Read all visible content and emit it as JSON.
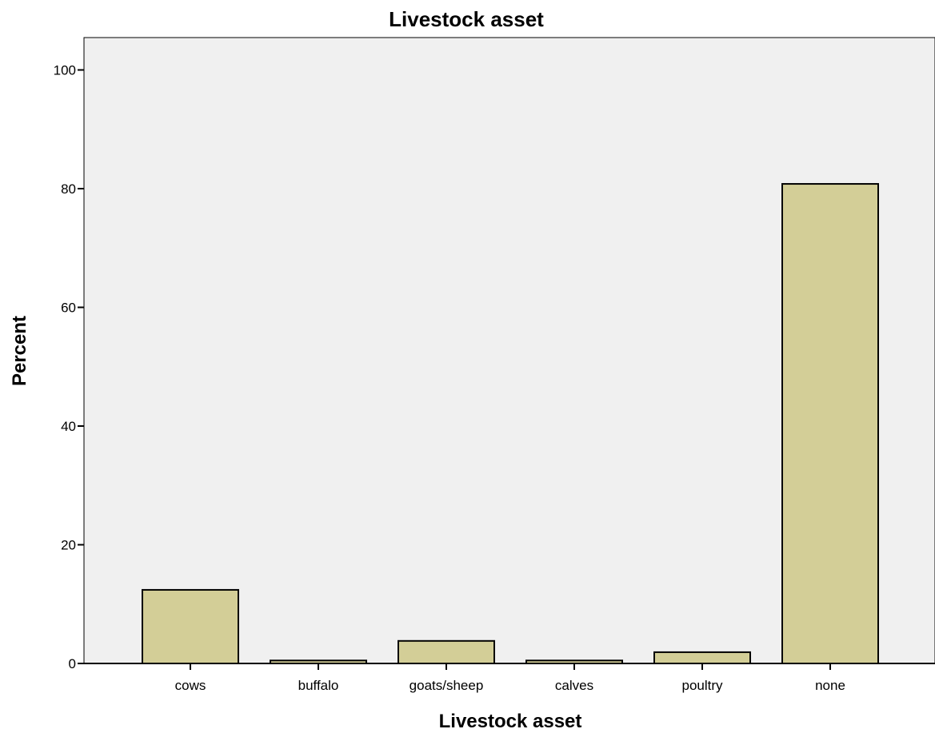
{
  "chart_data": {
    "type": "bar",
    "title": "Livestock asset",
    "xlabel": "Livestock asset",
    "ylabel": "Percent",
    "categories": [
      "cows",
      "buffalo",
      "goats/sheep",
      "calves",
      "poultry",
      "none"
    ],
    "values": [
      12.4,
      0.5,
      3.8,
      0.5,
      1.9,
      80.8
    ],
    "ylim": [
      0,
      105
    ],
    "yticks": [
      "0",
      "20",
      "40",
      "60",
      "80",
      "100"
    ],
    "grid": false,
    "legend": "none",
    "colors": {
      "bar_fill": "#d3ce97",
      "bar_stroke": "#000000",
      "plot_background": "#f0f0f0"
    }
  }
}
